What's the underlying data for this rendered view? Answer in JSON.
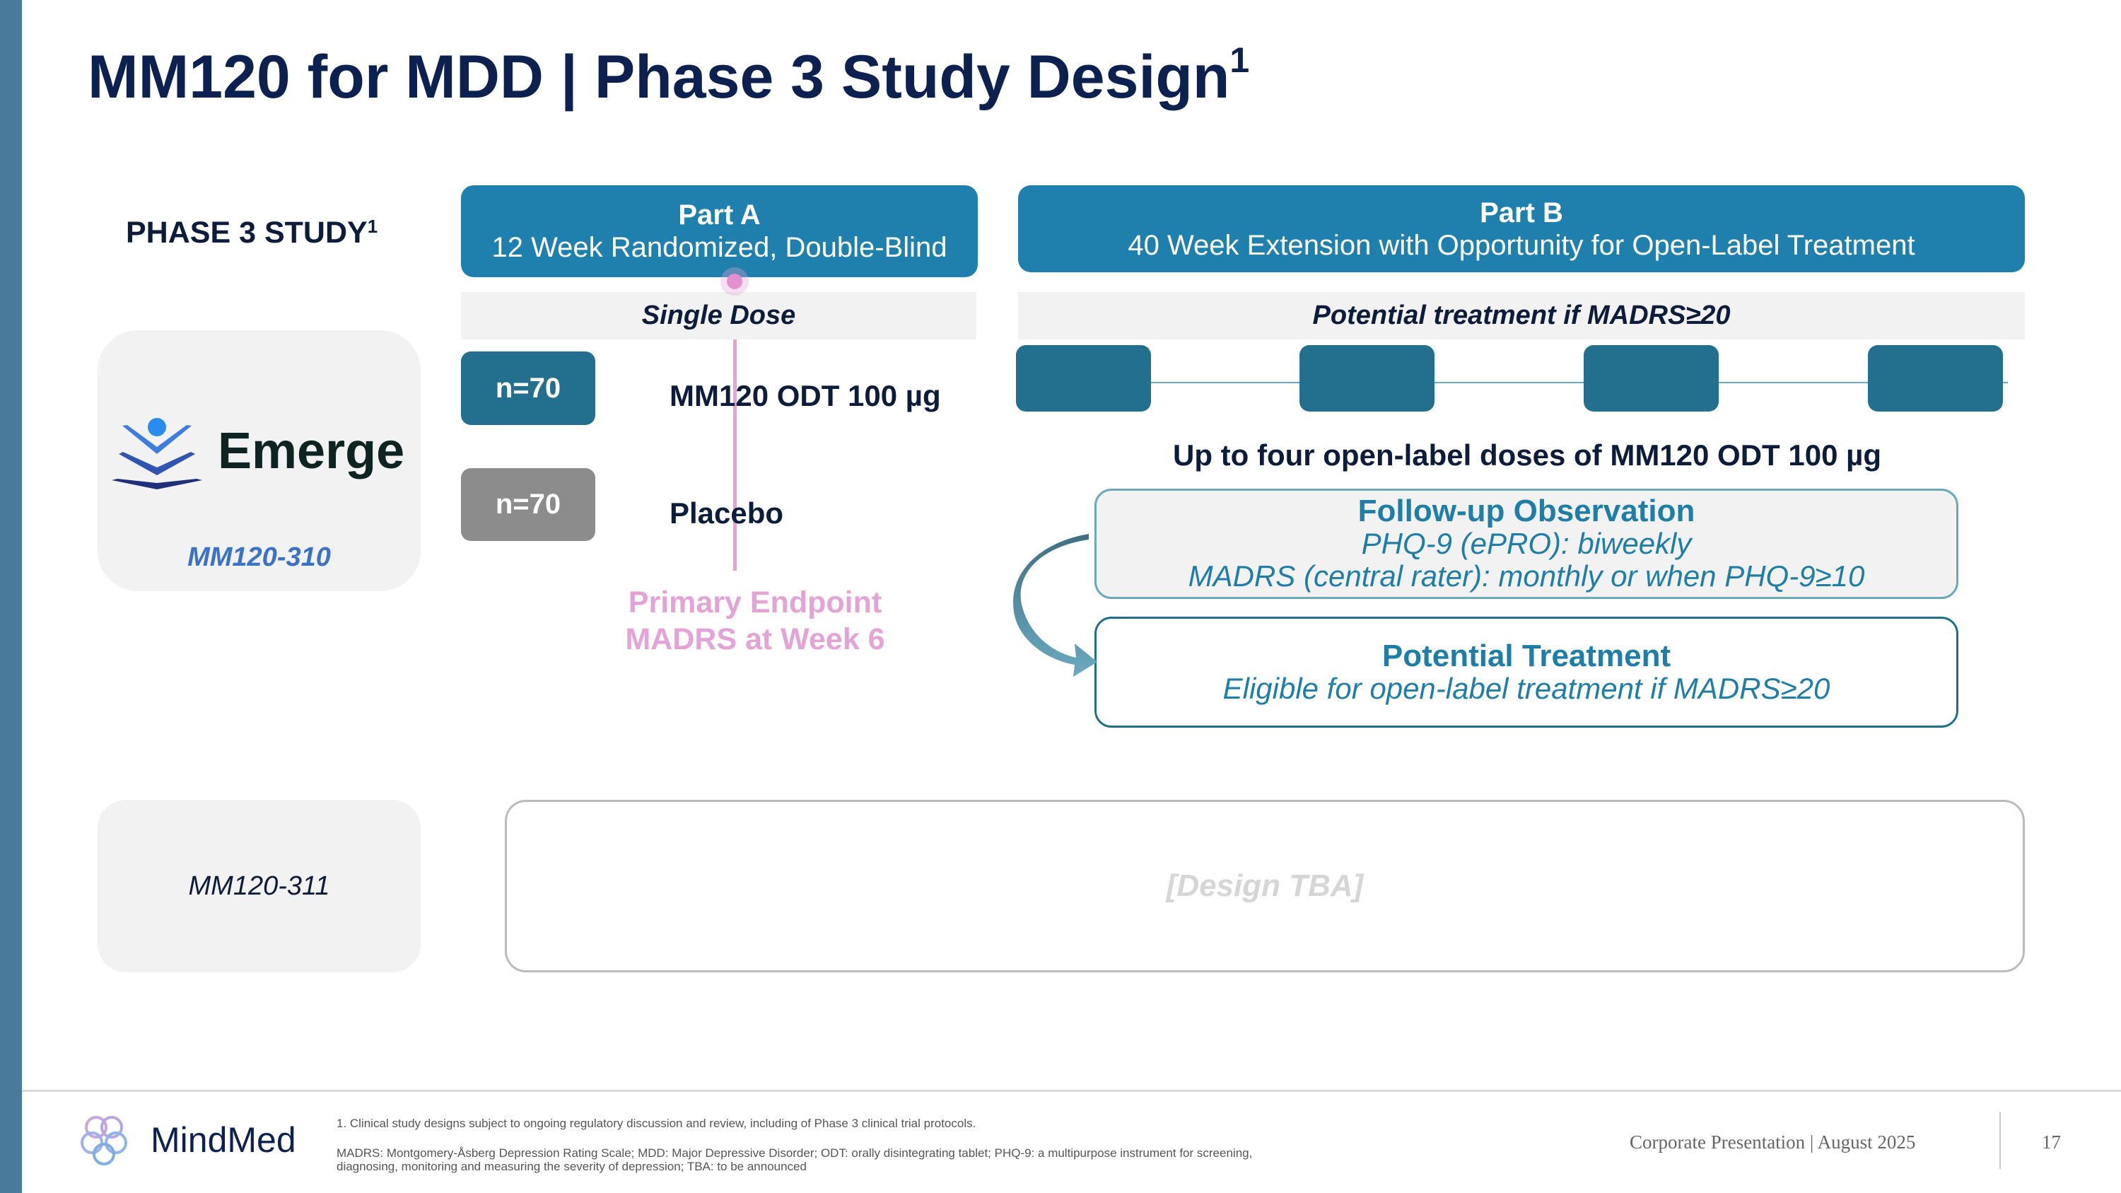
{
  "title": "MM120 for MDD | Phase 3 Study Design",
  "title_sup": "1",
  "phase_label": "PHASE 3 STUDY",
  "phase_sup": "1",
  "studies": [
    {
      "logo_text": "Emerge",
      "id": "MM120-310"
    },
    {
      "id": "MM120-311"
    }
  ],
  "part_a": {
    "title": "Part A",
    "subtitle": "12 Week Randomized, Double-Blind",
    "band": "Single Dose"
  },
  "part_b": {
    "title": "Part B",
    "subtitle": "40 Week Extension with Opportunity for Open-Label Treatment",
    "band": "Potential treatment if MADRS≥20"
  },
  "arms": [
    {
      "n": "n=70",
      "label": "MM120 ODT 100 µg"
    },
    {
      "n": "n=70",
      "label": "Placebo"
    }
  ],
  "primary_endpoint": [
    "Primary Endpoint",
    "MADRS at Week 6"
  ],
  "doses_caption": "Up to four open-label doses of MM120 ODT 100 µg",
  "follow_up": {
    "title": "Follow-up Observation",
    "lines": [
      "PHQ-9 (ePRO): biweekly",
      "MADRS (central rater): monthly or when PHQ-9≥10"
    ]
  },
  "potential_treatment": {
    "title": "Potential Treatment",
    "line": "Eligible for open-label treatment if MADRS≥20"
  },
  "design_tba": "[Design TBA]",
  "footer": {
    "logo": "MindMed",
    "footnote1": "1.  Clinical study designs subject to ongoing regulatory discussion and review, including of Phase 3 clinical trial protocols.",
    "footnote2": "MADRS: Montgomery-Åsberg Depression Rating Scale; MDD: Major Depressive Disorder; ODT: orally disintegrating tablet; PHQ-9: a multipurpose instrument for screening,",
    "footnote3": "diagnosing, monitoring and measuring the severity of depression; TBA: to be announced",
    "presentation": "Corporate Presentation | August 2025",
    "page": "17"
  },
  "colors": {
    "navy": "#0c2150",
    "teal": "#2080ad",
    "dark_teal": "#236f8e",
    "pink": "#e3a3d6"
  }
}
